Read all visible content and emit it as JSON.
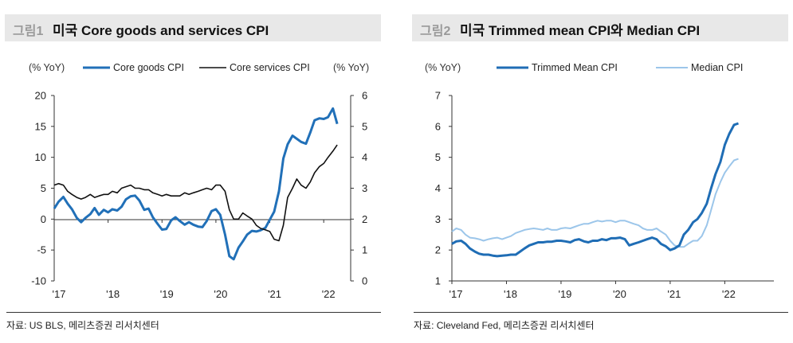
{
  "colors": {
    "core_goods": "#2170b8",
    "core_services": "#111111",
    "trimmed": "#1f6db5",
    "median": "#9cc6ea"
  },
  "panel1": {
    "fig_num": "그림1",
    "title": "미국  Core goods and services CPI",
    "source": "자료: US BLS, 메리츠증권 리서치센터"
  },
  "panel2": {
    "fig_num": "그림2",
    "title": "미국  Trimmed mean CPI와  Median CPI",
    "source": "자료: Cleveland Fed, 메리츠증권 리서치센터"
  },
  "chart_data": [
    {
      "type": "line",
      "title": "미국 Core goods and services CPI",
      "y_left_label": "(% YoY)",
      "y_right_label": "(% YoY)",
      "ylim_left": [
        -10,
        20
      ],
      "ylim_right": [
        0,
        6
      ],
      "yticks_left": [
        "20",
        "15",
        "10",
        "5",
        "0",
        "-5",
        "-10"
      ],
      "yticks_right": [
        "6",
        "5",
        "4",
        "3",
        "2",
        "1",
        "0"
      ],
      "x_range": [
        2017.0,
        2022.5
      ],
      "xticks": [
        "'17",
        "'18",
        "'19",
        "'20",
        "'21",
        "'22"
      ],
      "series": [
        {
          "name": "Core goods CPI",
          "axis": "left",
          "x": [
            2017.0,
            2017.08,
            2017.17,
            2017.25,
            2017.33,
            2017.42,
            2017.5,
            2017.58,
            2017.67,
            2017.75,
            2017.83,
            2017.92,
            2018.0,
            2018.08,
            2018.17,
            2018.25,
            2018.33,
            2018.42,
            2018.5,
            2018.58,
            2018.67,
            2018.75,
            2018.83,
            2018.92,
            2019.0,
            2019.08,
            2019.17,
            2019.25,
            2019.33,
            2019.42,
            2019.5,
            2019.58,
            2019.67,
            2019.75,
            2019.83,
            2019.92,
            2020.0,
            2020.08,
            2020.17,
            2020.25,
            2020.33,
            2020.42,
            2020.5,
            2020.58,
            2020.67,
            2020.75,
            2020.83,
            2020.92,
            2021.0,
            2021.08,
            2021.17,
            2021.25,
            2021.33,
            2021.42,
            2021.5,
            2021.58,
            2021.67,
            2021.75,
            2021.83,
            2021.92,
            2022.0,
            2022.08,
            2022.17,
            2022.25
          ],
          "values": [
            1.7,
            2.8,
            3.6,
            2.5,
            1.6,
            0.2,
            -0.5,
            0.2,
            0.8,
            1.8,
            0.7,
            1.5,
            1.1,
            1.6,
            1.4,
            2.0,
            3.2,
            3.7,
            3.8,
            3.0,
            1.5,
            1.7,
            0.3,
            -0.8,
            -1.7,
            -1.6,
            -0.2,
            0.3,
            -0.3,
            -0.9,
            -0.5,
            -0.9,
            -1.2,
            -1.3,
            -0.3,
            1.3,
            1.6,
            0.7,
            -2.5,
            -6.0,
            -6.5,
            -4.6,
            -3.6,
            -2.5,
            -1.9,
            -2.0,
            -1.8,
            -1.4,
            -0.1,
            1.2,
            4.5,
            9.8,
            12.1,
            13.5,
            13.0,
            12.5,
            12.2,
            14.0,
            16.0,
            16.3,
            16.2,
            16.5,
            17.9,
            15.4
          ]
        },
        {
          "name": "Core services CPI",
          "axis": "right",
          "x": [
            2017.0,
            2017.08,
            2017.17,
            2017.25,
            2017.33,
            2017.42,
            2017.5,
            2017.58,
            2017.67,
            2017.75,
            2017.83,
            2017.92,
            2018.0,
            2018.08,
            2018.17,
            2018.25,
            2018.33,
            2018.42,
            2018.5,
            2018.58,
            2018.67,
            2018.75,
            2018.83,
            2018.92,
            2019.0,
            2019.08,
            2019.17,
            2019.25,
            2019.33,
            2019.42,
            2019.5,
            2019.58,
            2019.67,
            2019.75,
            2019.83,
            2019.92,
            2020.0,
            2020.08,
            2020.17,
            2020.25,
            2020.33,
            2020.42,
            2020.5,
            2020.58,
            2020.67,
            2020.75,
            2020.83,
            2020.92,
            2021.0,
            2021.08,
            2021.17,
            2021.25,
            2021.33,
            2021.42,
            2021.5,
            2021.58,
            2021.67,
            2021.75,
            2021.83,
            2021.92,
            2022.0,
            2022.08,
            2022.17,
            2022.25
          ],
          "values": [
            3.1,
            3.15,
            3.1,
            2.9,
            2.8,
            2.7,
            2.65,
            2.7,
            2.8,
            2.7,
            2.75,
            2.8,
            2.8,
            2.9,
            2.85,
            3.0,
            3.05,
            3.1,
            3.0,
            3.0,
            2.95,
            2.95,
            2.85,
            2.8,
            2.75,
            2.8,
            2.75,
            2.75,
            2.75,
            2.85,
            2.8,
            2.85,
            2.9,
            2.95,
            3.0,
            2.95,
            3.1,
            3.1,
            2.9,
            2.3,
            2.0,
            2.0,
            2.2,
            2.1,
            2.0,
            1.8,
            1.7,
            1.65,
            1.6,
            1.35,
            1.3,
            1.8,
            2.7,
            3.0,
            3.3,
            3.1,
            3.0,
            3.2,
            3.5,
            3.7,
            3.8,
            4.0,
            4.2,
            4.4
          ]
        }
      ]
    },
    {
      "type": "line",
      "title": "미국 Trimmed mean CPI와 Median CPI",
      "y_label": "(% YoY)",
      "ylim": [
        1,
        7
      ],
      "yticks": [
        "7",
        "6",
        "5",
        "4",
        "3",
        "2",
        "1"
      ],
      "x_range": [
        2017.0,
        2022.9
      ],
      "xticks": [
        "'17",
        "'18",
        "'19",
        "'20",
        "'21",
        "'22"
      ],
      "series": [
        {
          "name": "Trimmed Mean CPI",
          "x": [
            2017.0,
            2017.08,
            2017.17,
            2017.25,
            2017.33,
            2017.42,
            2017.5,
            2017.58,
            2017.67,
            2017.75,
            2017.83,
            2017.92,
            2018.0,
            2018.08,
            2018.17,
            2018.25,
            2018.33,
            2018.42,
            2018.5,
            2018.58,
            2018.67,
            2018.75,
            2018.83,
            2018.92,
            2019.0,
            2019.08,
            2019.17,
            2019.25,
            2019.33,
            2019.42,
            2019.5,
            2019.58,
            2019.67,
            2019.75,
            2019.83,
            2019.92,
            2020.0,
            2020.08,
            2020.17,
            2020.25,
            2020.33,
            2020.42,
            2020.5,
            2020.58,
            2020.67,
            2020.75,
            2020.83,
            2020.92,
            2021.0,
            2021.08,
            2021.17,
            2021.25,
            2021.33,
            2021.42,
            2021.5,
            2021.58,
            2021.67,
            2021.75,
            2021.83,
            2021.92,
            2022.0,
            2022.08,
            2022.17,
            2022.25
          ],
          "values": [
            2.2,
            2.28,
            2.3,
            2.2,
            2.05,
            1.95,
            1.88,
            1.85,
            1.85,
            1.82,
            1.8,
            1.82,
            1.83,
            1.85,
            1.85,
            1.95,
            2.05,
            2.15,
            2.2,
            2.25,
            2.25,
            2.27,
            2.27,
            2.3,
            2.3,
            2.28,
            2.25,
            2.32,
            2.35,
            2.28,
            2.25,
            2.3,
            2.3,
            2.35,
            2.32,
            2.38,
            2.38,
            2.4,
            2.35,
            2.15,
            2.2,
            2.25,
            2.3,
            2.35,
            2.4,
            2.35,
            2.2,
            2.12,
            2.0,
            2.05,
            2.15,
            2.5,
            2.65,
            2.9,
            3.0,
            3.2,
            3.5,
            4.0,
            4.45,
            4.85,
            5.4,
            5.75,
            6.05,
            6.1
          ]
        },
        {
          "name": "Median CPI",
          "x": [
            2017.0,
            2017.08,
            2017.17,
            2017.25,
            2017.33,
            2017.42,
            2017.5,
            2017.58,
            2017.67,
            2017.75,
            2017.83,
            2017.92,
            2018.0,
            2018.08,
            2018.17,
            2018.25,
            2018.33,
            2018.42,
            2018.5,
            2018.58,
            2018.67,
            2018.75,
            2018.83,
            2018.92,
            2019.0,
            2019.08,
            2019.17,
            2019.25,
            2019.33,
            2019.42,
            2019.5,
            2019.58,
            2019.67,
            2019.75,
            2019.83,
            2019.92,
            2020.0,
            2020.08,
            2020.17,
            2020.25,
            2020.33,
            2020.42,
            2020.5,
            2020.58,
            2020.67,
            2020.75,
            2020.83,
            2020.92,
            2021.0,
            2021.08,
            2021.17,
            2021.25,
            2021.33,
            2021.42,
            2021.5,
            2021.58,
            2021.67,
            2021.75,
            2021.83,
            2021.92,
            2022.0,
            2022.08,
            2022.17,
            2022.25
          ],
          "values": [
            2.6,
            2.7,
            2.65,
            2.5,
            2.4,
            2.38,
            2.35,
            2.3,
            2.35,
            2.38,
            2.4,
            2.35,
            2.4,
            2.45,
            2.55,
            2.6,
            2.65,
            2.68,
            2.7,
            2.68,
            2.65,
            2.7,
            2.65,
            2.65,
            2.7,
            2.72,
            2.7,
            2.75,
            2.8,
            2.85,
            2.85,
            2.9,
            2.95,
            2.92,
            2.95,
            2.95,
            2.9,
            2.95,
            2.95,
            2.9,
            2.85,
            2.8,
            2.7,
            2.65,
            2.65,
            2.7,
            2.6,
            2.5,
            2.3,
            2.15,
            2.1,
            2.1,
            2.2,
            2.3,
            2.3,
            2.45,
            2.8,
            3.3,
            3.8,
            4.2,
            4.5,
            4.7,
            4.9,
            4.95
          ]
        }
      ]
    }
  ]
}
